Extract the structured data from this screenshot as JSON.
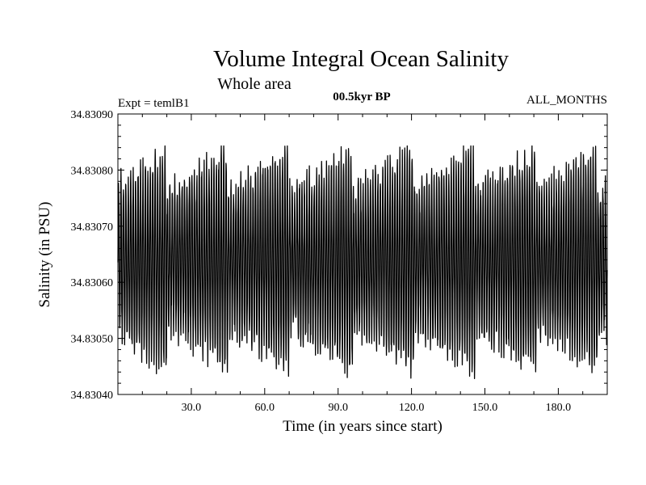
{
  "chart_data": {
    "type": "line",
    "title": "Volume Integral Ocean Salinity",
    "subtitle": "Whole area",
    "experiment_label": "Expt = temlB1",
    "period_label": "00.5kyr BP",
    "months_label": "ALL_MONTHS",
    "xlabel": "Time (in years since start)",
    "ylabel": "Salinity (in PSU)",
    "xlim": [
      0,
      200
    ],
    "ylim": [
      34.8304,
      34.8309
    ],
    "x_ticks": [
      30,
      60,
      90,
      120,
      150,
      180
    ],
    "x_tick_labels": [
      "30.0",
      "60.0",
      "90.0",
      "120.0",
      "150.0",
      "180.0"
    ],
    "y_ticks": [
      34.8304,
      34.8305,
      34.8306,
      34.8307,
      34.8308,
      34.8309
    ],
    "y_tick_labels": [
      "34.83040",
      "34.83050",
      "34.83060",
      "34.83070",
      "34.83080",
      "34.83090"
    ],
    "series": [
      {
        "name": "Salinity",
        "x_start": 0,
        "x_end": 200,
        "samples_per_year": 12,
        "mean": 34.8306,
        "seasonal_high": 34.8308,
        "seasonal_low": 34.83048,
        "observed_max": 34.830843,
        "observed_min": 34.830406,
        "color": "#000000"
      }
    ]
  },
  "colors": {
    "line": "#000000",
    "background": "#ffffff"
  }
}
